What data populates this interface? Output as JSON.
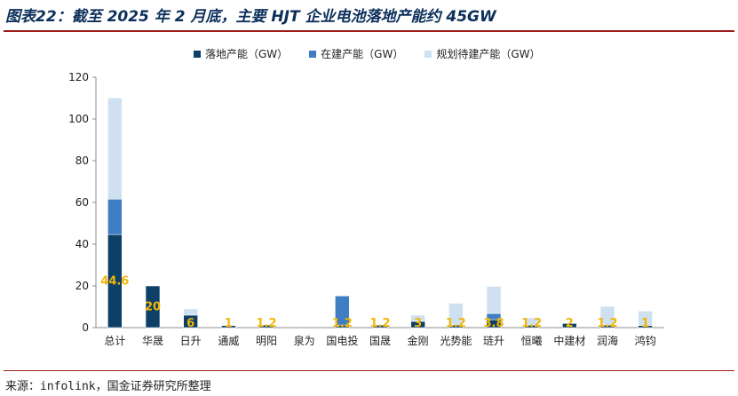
{
  "header": {
    "title": "图表22：截至 2025 年 2 月底，主要 HJT 企业电池落地产能约 45GW"
  },
  "footer": {
    "source": "来源：infolink，国金证券研究所整理"
  },
  "colors": {
    "landed": "#0e3f66",
    "building": "#3f7ec2",
    "planned": "#cfe0f1",
    "label": "#f2b705",
    "title": "#0b2f5a",
    "rule": "#9b1c1c"
  },
  "chart_data": {
    "type": "bar",
    "stacked": true,
    "categories": [
      "总计",
      "华晟",
      "日升",
      "通威",
      "明阳",
      "泉为",
      "国电投",
      "国晟",
      "金刚",
      "光势能",
      "琏升",
      "恒曦",
      "中建材",
      "润海",
      "鸿钧"
    ],
    "series": [
      {
        "name": "落地产能（GW）",
        "values": [
          44.6,
          20,
          6,
          1,
          1.2,
          0,
          1.2,
          1.2,
          3,
          1.2,
          3.8,
          1.2,
          2,
          1.2,
          1
        ]
      },
      {
        "name": "在建产能（GW）",
        "values": [
          17,
          0,
          0,
          0,
          0,
          0,
          14,
          0,
          0,
          0,
          3,
          0,
          0,
          0,
          0
        ]
      },
      {
        "name": "规划待建产能（GW）",
        "values": [
          48.5,
          0,
          3,
          0,
          0,
          0,
          0,
          0,
          3,
          10.5,
          13,
          3.5,
          0,
          9,
          7
        ]
      }
    ],
    "data_labels": [
      "44.6",
      "20",
      "6",
      "1",
      "1.2",
      "",
      "1.2",
      "1.2",
      "3",
      "1.2",
      "3.8",
      "1.2",
      "2",
      "1.2",
      "1"
    ],
    "ylim": [
      0,
      120
    ],
    "yticks": [
      0,
      20,
      40,
      60,
      80,
      100,
      120
    ],
    "legend_position": "top",
    "grid": false
  }
}
